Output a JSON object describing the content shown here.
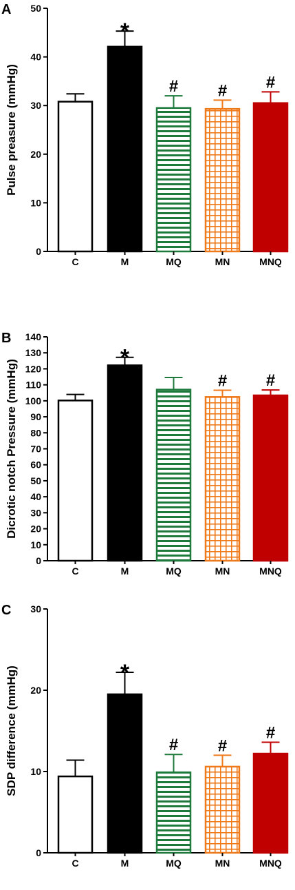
{
  "chart_data": [
    {
      "type": "bar",
      "panel": "A",
      "ylabel": "Pulse preasure (mmHg)",
      "ylim": [
        0,
        50
      ],
      "yticks": [
        "0",
        "10",
        "20",
        "30",
        "40",
        "50"
      ],
      "categories": [
        "C",
        "M",
        "MQ",
        "MN",
        "MNQ"
      ],
      "values": [
        30.8,
        42.1,
        29.5,
        29.3,
        30.5
      ],
      "errors": [
        1.6,
        3.2,
        2.5,
        1.8,
        2.3
      ],
      "significance": [
        "",
        "*",
        "#",
        "#",
        "#"
      ]
    },
    {
      "type": "bar",
      "panel": "B",
      "ylabel": "Dicrotic notch Pressure (mmHg)",
      "ylim": [
        0,
        140
      ],
      "yticks": [
        "0",
        "10",
        "20",
        "30",
        "40",
        "50",
        "60",
        "70",
        "80",
        "90",
        "100",
        "110",
        "120",
        "130",
        "140"
      ],
      "categories": [
        "C",
        "M",
        "MQ",
        "MN",
        "MNQ"
      ],
      "values": [
        100.2,
        122.2,
        107.0,
        102.4,
        103.4
      ],
      "errors": [
        3.8,
        5.0,
        7.6,
        4.2,
        3.4
      ],
      "significance": [
        "",
        "*",
        "",
        "#",
        "#"
      ]
    },
    {
      "type": "bar",
      "panel": "C",
      "ylabel": "SDP difference (mmHg)",
      "ylim": [
        0,
        30
      ],
      "yticks": [
        "0",
        "10",
        "20",
        "30"
      ],
      "categories": [
        "C",
        "M",
        "MQ",
        "MN",
        "MNQ"
      ],
      "values": [
        9.4,
        19.5,
        9.9,
        10.6,
        12.2
      ],
      "errors": [
        2.0,
        2.7,
        2.2,
        1.4,
        1.4
      ],
      "significance": [
        "",
        "*",
        "#",
        "#",
        "#"
      ]
    }
  ],
  "bar_styles": [
    {
      "group": "C",
      "fill": "#ffffff",
      "stroke": "#000000",
      "pattern": "none"
    },
    {
      "group": "M",
      "fill": "#000000",
      "stroke": "#000000",
      "pattern": "solid"
    },
    {
      "group": "MQ",
      "fill": "#ffffff",
      "stroke": "#1e7a3c",
      "pattern": "horizontal-stripes"
    },
    {
      "group": "MN",
      "fill": "#ffffff",
      "stroke": "#f07a1a",
      "pattern": "grid"
    },
    {
      "group": "MNQ",
      "fill": "#c00000",
      "stroke": "#c00000",
      "pattern": "solid"
    }
  ]
}
